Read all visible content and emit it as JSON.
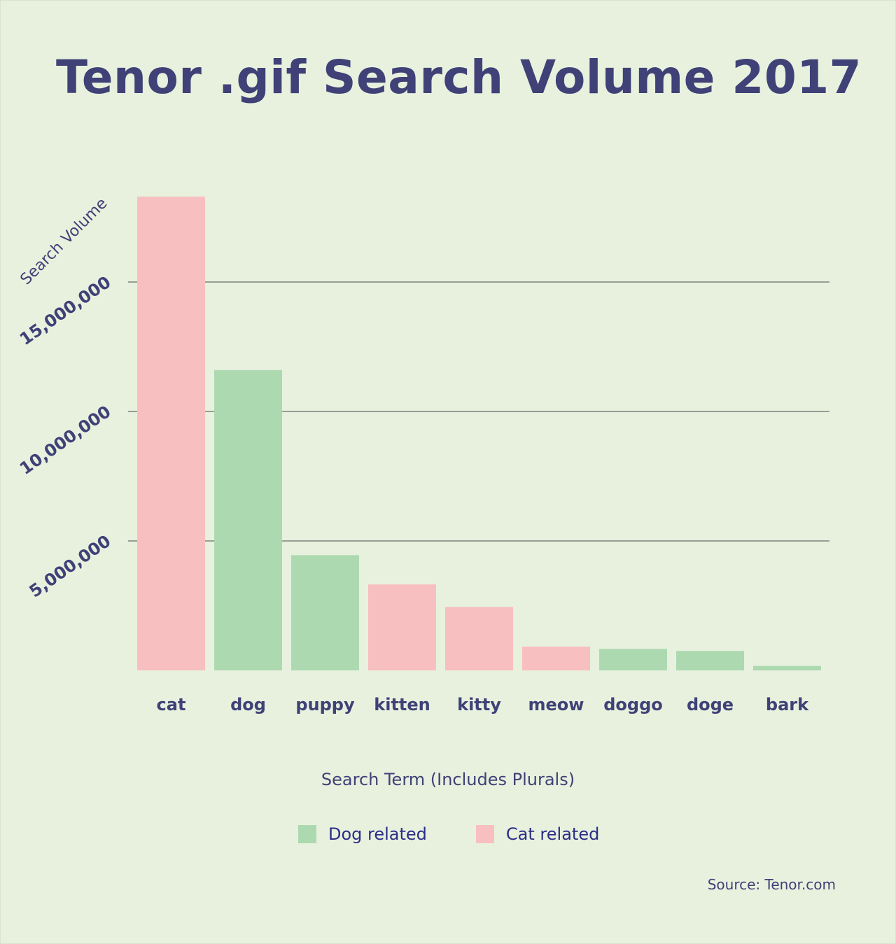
{
  "title": "Tenor .gif Search Volume 2017",
  "source": "Source: Tenor.com",
  "colors": {
    "background": "#e7f1de",
    "text": "#3f4177",
    "dog": "#add9b0",
    "cat": "#f8bfc1",
    "gridline": "#4a4a4a"
  },
  "legend": [
    {
      "label": "Dog related",
      "color": "#add9b0"
    },
    {
      "label": "Cat related",
      "color": "#f8bfc1"
    }
  ],
  "chart_data": {
    "type": "bar",
    "title": "Tenor .gif Search Volume 2017",
    "xlabel": "Search Term (Includes Plurals)",
    "ylabel": "Search Volume",
    "categories": [
      "cat",
      "dog",
      "puppy",
      "kitten",
      "kitty",
      "meow",
      "doggo",
      "doge",
      "bark"
    ],
    "values": [
      18300000,
      11600000,
      4450000,
      3320000,
      2450000,
      920000,
      830000,
      750000,
      170000
    ],
    "groups": [
      "Cat related",
      "Dog related",
      "Dog related",
      "Cat related",
      "Cat related",
      "Cat related",
      "Dog related",
      "Dog related",
      "Dog related"
    ],
    "yticks": [
      {
        "value": 5000000,
        "label": "5,000,000"
      },
      {
        "value": 10000000,
        "label": "10,000,000"
      },
      {
        "value": 15000000,
        "label": "15,000,000"
      }
    ],
    "ylim": [
      0,
      18300000
    ],
    "grid": true,
    "legend_position": "bottom"
  }
}
